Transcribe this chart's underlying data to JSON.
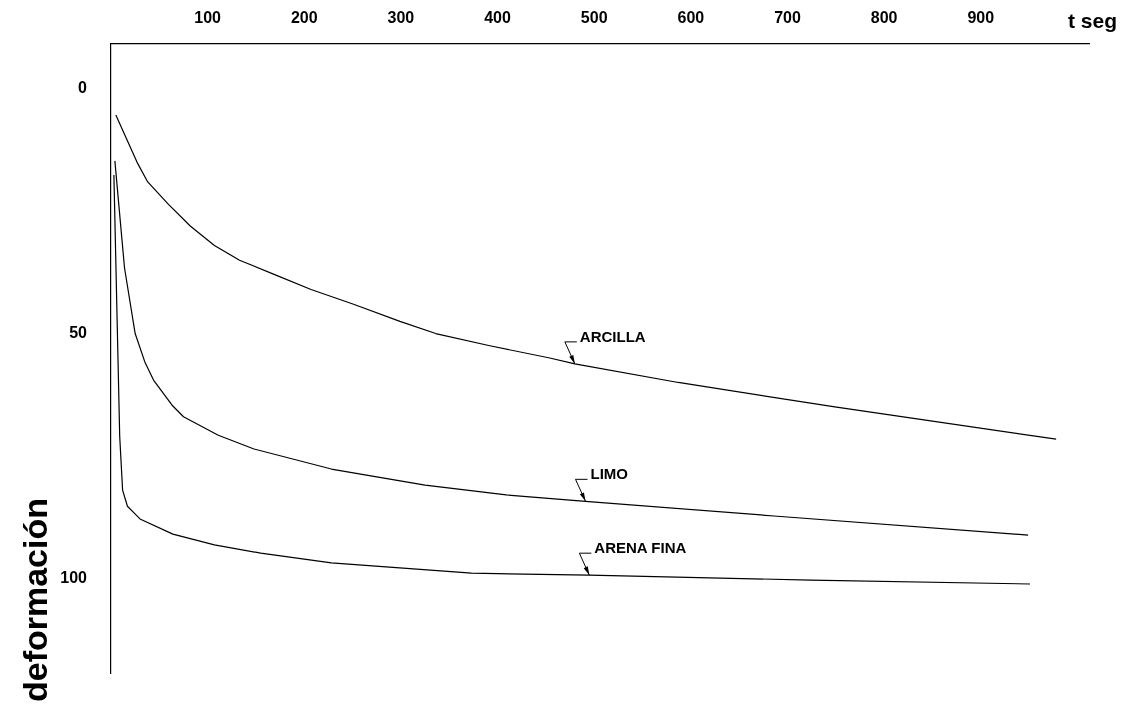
{
  "chart_data": {
    "type": "line",
    "xlabel": "t seg",
    "ylabel": "deformación",
    "xlim": [
      0,
      1012
    ],
    "xticks": [
      100,
      200,
      300,
      400,
      500,
      600,
      700,
      800,
      900
    ],
    "ylim": [
      119.4,
      -9.2
    ],
    "yticks": [
      0,
      50,
      100
    ],
    "marker": "none",
    "series": [
      {
        "color": "#000000",
        "x": [
          5,
          27,
          38,
          59,
          82,
          107,
          133,
          170,
          207,
          251,
          299,
          336,
          392,
          454,
          480,
          587,
          749,
          978
        ],
        "values": [
          5.3,
          15,
          19,
          23.5,
          28,
          32,
          35,
          38,
          41,
          44,
          47.5,
          50,
          52.5,
          55,
          56.2,
          60,
          65,
          71.6
        ]
      },
      {
        "color": "#000000",
        "x": [
          4,
          14,
          25,
          35,
          44,
          63,
          75,
          111,
          148,
          228,
          325,
          409,
          491,
          686,
          949
        ],
        "values": [
          14.7,
          36.6,
          50,
          55.8,
          59.5,
          64.6,
          67,
          70.8,
          73.6,
          77.7,
          81,
          83,
          84.3,
          87.3,
          91.2
        ]
      },
      {
        "color": "#000000",
        "x": [
          3,
          9,
          12,
          17,
          30,
          64,
          107,
          155,
          228,
          373,
          495,
          724,
          951
        ],
        "values": [
          17.6,
          71,
          82,
          85.3,
          87.9,
          91,
          93.2,
          94.9,
          96.9,
          99,
          99.4,
          100.4,
          101.2
        ]
      }
    ],
    "annotations": [
      {
        "text": "ARCILLA",
        "x": 480,
        "y": 56.2
      },
      {
        "text": "LIMO",
        "x": 491,
        "y": 84.3
      },
      {
        "text": "ARENA FINA",
        "x": 495,
        "y": 99.4
      }
    ]
  }
}
